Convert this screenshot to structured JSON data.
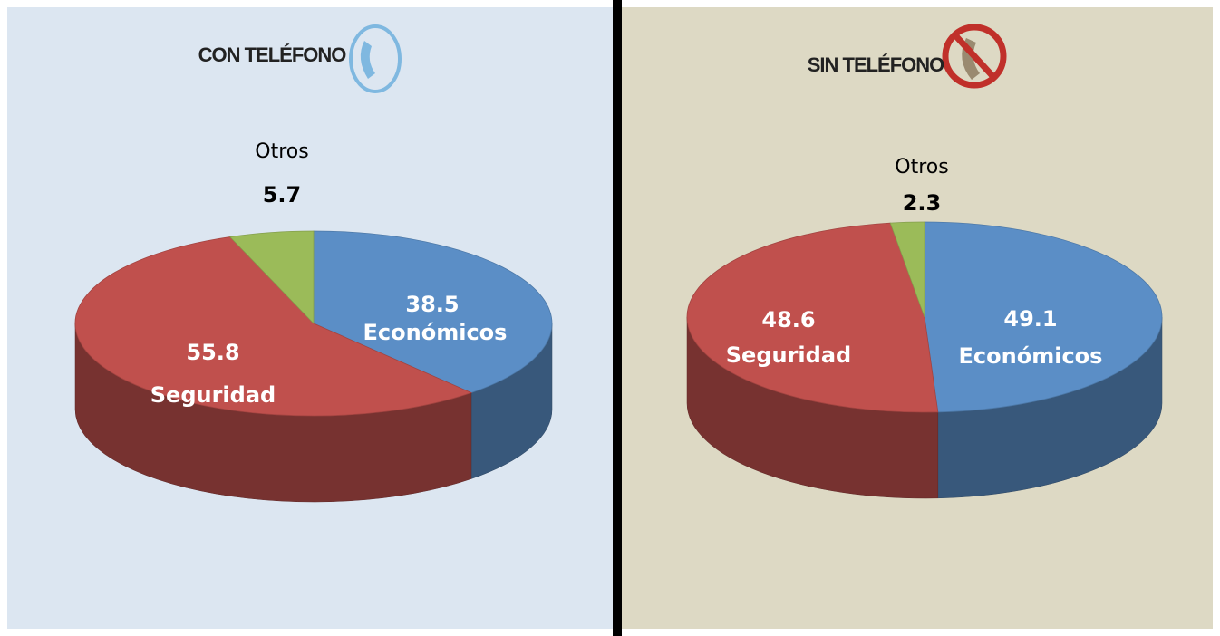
{
  "chart_data": [
    {
      "type": "pie",
      "title": "CON TELÉFONO",
      "categories": [
        "Económicos",
        "Seguridad",
        "Otros"
      ],
      "values": [
        38.5,
        55.8,
        5.7
      ],
      "colors": [
        "#5b8ec6",
        "#c0504d",
        "#9bbb59"
      ]
    },
    {
      "type": "pie",
      "title": "SIN TELÉFONO",
      "categories": [
        "Económicos",
        "Seguridad",
        "Otros"
      ],
      "values": [
        49.1,
        48.6,
        2.3
      ],
      "colors": [
        "#5b8ec6",
        "#c0504d",
        "#9bbb59"
      ]
    }
  ]
}
